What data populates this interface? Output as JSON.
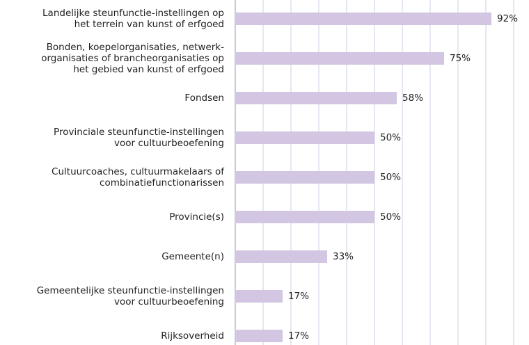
{
  "chart_data": {
    "type": "bar",
    "orientation": "horizontal",
    "categories": [
      "Landelijke steunfunctie-instellingen op\nhet terrein van kunst of erfgoed",
      "Bonden, koepelorganisaties, netwerk-\norganisaties of brancheorganisaties op\nhet gebied van kunst of erfgoed",
      "Fondsen",
      "Provinciale steunfunctie-instellingen\nvoor cultuurbeoefening",
      "Cultuurcoaches, cultuurmakelaars of\ncombinatiefunctionarissen",
      "Provincie(s)",
      "Gemeente(n)",
      "Gemeentelijke steunfunctie-instellingen\nvoor cultuurbeoefening",
      "Rijksoverheid"
    ],
    "values": [
      92,
      75,
      58,
      50,
      50,
      50,
      33,
      17,
      17
    ],
    "value_labels": [
      "92%",
      "75%",
      "58%",
      "50%",
      "50%",
      "50%",
      "33%",
      "17%",
      "17%"
    ],
    "color": "#d2c6e2",
    "xlim": [
      0,
      100
    ],
    "xticks": [
      0,
      10,
      20,
      30,
      40,
      50,
      60,
      70,
      80,
      90,
      100
    ],
    "grid": true
  }
}
